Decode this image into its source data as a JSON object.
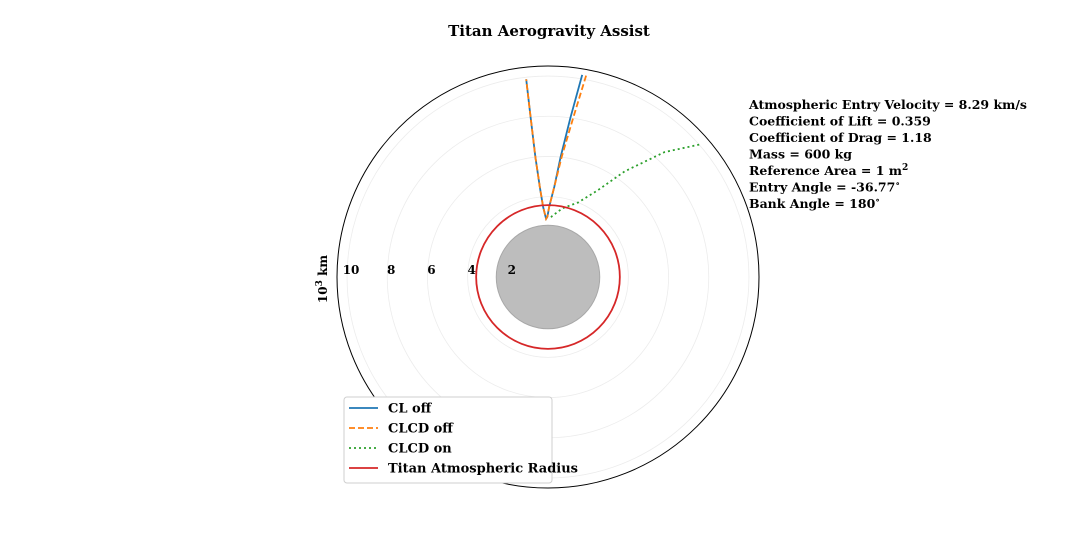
{
  "chart_data": {
    "type": "polar-line",
    "title": "Titan Aerogravity Assist",
    "radial_axis_label": "10$^3$ km",
    "radial_axis_label_base": "10",
    "radial_axis_label_exp": "3",
    "radial_axis_label_unit": " km",
    "radial_ticks": [
      "10",
      "8",
      "6",
      "4",
      "2"
    ],
    "radial_tick_values": [
      10,
      8,
      6,
      4,
      2
    ],
    "r_max": 10.5,
    "grid": true,
    "legend_position": "lower-left",
    "annotations": [
      {
        "text": "Atmospheric Entry Velocity = 8.29 km/s"
      },
      {
        "text": "Coefficient of Lift = 0.359"
      },
      {
        "text": "Coefficient of Drag = 1.18"
      },
      {
        "text": "Mass = 600 kg"
      },
      {
        "text": "Reference Area = 1 m",
        "sup": "2"
      },
      {
        "text": "Entry Angle = -36.77",
        "sup": "∘"
      },
      {
        "text": "Bank Angle = 180",
        "sup": "∘"
      }
    ],
    "titan_body": {
      "radius": 2.575,
      "color": "#bdbdbd",
      "edge": "#a8a8a8"
    },
    "series": [
      {
        "name": "CL off",
        "color": "#1f77b4",
        "style": "solid",
        "points": [
          [
            80.4,
            10.2
          ],
          [
            82,
            8.0
          ],
          [
            84,
            6.0
          ],
          [
            86,
            4.5
          ],
          [
            89,
            3.5
          ],
          [
            90.6,
            3.0
          ],
          [
            91.9,
            2.9
          ],
          [
            94,
            3.5
          ],
          [
            95.2,
            4.5
          ],
          [
            96,
            6.0
          ],
          [
            96.2,
            8.0
          ],
          [
            96.3,
            9.9
          ]
        ]
      },
      {
        "name": "CLCD off",
        "color": "#ff7f0e",
        "style": "dashed",
        "points": [
          [
            79.3,
            10.2
          ],
          [
            81,
            8.0
          ],
          [
            83.5,
            6.0
          ],
          [
            86,
            4.5
          ],
          [
            89,
            3.5
          ],
          [
            90.6,
            3.0
          ],
          [
            91.9,
            2.9
          ],
          [
            94,
            3.5
          ],
          [
            95.2,
            4.5
          ],
          [
            96,
            6.0
          ],
          [
            96.2,
            8.0
          ],
          [
            96.3,
            9.9
          ]
        ]
      },
      {
        "name": "CLCD on",
        "color": "#2ca02c",
        "style": "dotted",
        "points": [
          [
            41.2,
            10.0
          ],
          [
            47,
            8.5
          ],
          [
            54,
            6.5
          ],
          [
            60,
            5.0
          ],
          [
            68,
            4.0
          ],
          [
            78,
            3.5
          ],
          [
            86,
            3.05
          ],
          [
            88.5,
            2.9
          ]
        ]
      },
      {
        "name": "Titan Atmospheric Radius",
        "color": "#d62728",
        "style": "solid",
        "circle_radius": 3.575
      }
    ]
  }
}
